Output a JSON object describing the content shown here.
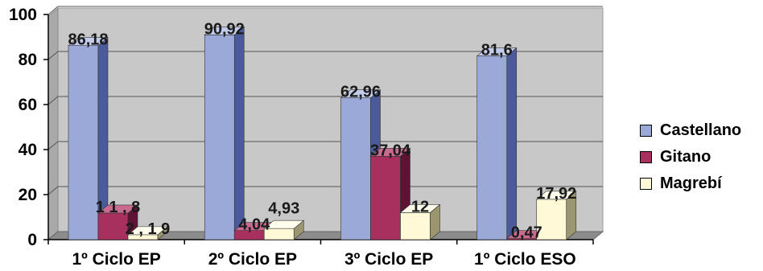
{
  "chart_data": {
    "type": "bar",
    "categories": [
      "1º Ciclo EP",
      "2º Ciclo EP",
      "3º Ciclo EP",
      "1º Ciclo ESO"
    ],
    "series": [
      {
        "name": "Castellano",
        "values": [
          86.18,
          90.92,
          62.96,
          81.6
        ],
        "labels": [
          "86,18",
          "90,92",
          "62,96",
          "81,6"
        ],
        "color": "#9aa9d8",
        "side": "#4b5a9a",
        "top": "#c3cdeb"
      },
      {
        "name": "Gitano",
        "values": [
          11.8,
          4.04,
          37.04,
          0.47
        ],
        "labels": [
          "1 1 , 8",
          "4,04",
          "37,04",
          "0,47"
        ],
        "color": "#a8305e",
        "side": "#5e1234",
        "top": "#c86b8f"
      },
      {
        "name": "Magrebí",
        "values": [
          2.19,
          4.93,
          12,
          17.92
        ],
        "labels": [
          "2 , 1 9",
          "4,93",
          "12",
          "17,92"
        ],
        "color": "#fff9d8",
        "side": "#9b9670",
        "top": "#fffdec"
      }
    ],
    "y_ticks": [
      "0",
      "20",
      "40",
      "60",
      "80",
      "100"
    ],
    "ylim": [
      0,
      100
    ],
    "title": "",
    "xlabel": "",
    "ylabel": "",
    "grid": true,
    "legend_position": "right"
  }
}
